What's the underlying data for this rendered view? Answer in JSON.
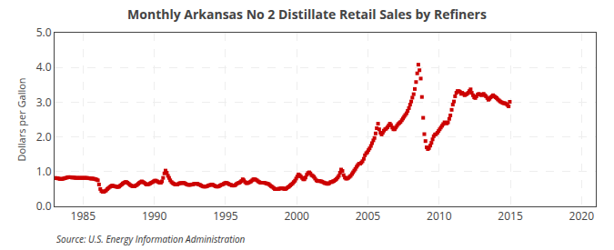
{
  "chart_data": {
    "type": "scatter",
    "title": "Monthly Arkansas No 2 Distillate Retail Sales by Refiners",
    "y_label": "Dollars per Gallon",
    "annotations": [
      "Source: U.S. Energy Information Administration"
    ],
    "color": "#CC0000",
    "marker": "square",
    "grid": true,
    "xlim": [
      1983.0,
      2021.0
    ],
    "ylim": [
      0.0,
      5.0
    ],
    "xticks": [
      1985,
      1990,
      1995,
      2000,
      2005,
      2010,
      2015,
      2020
    ],
    "yticks": [
      {
        "value": 0.0,
        "label": "0.0"
      },
      {
        "value": 1.0,
        "label": "1.0"
      },
      {
        "value": 2.0,
        "label": "2.0"
      },
      {
        "value": 3.0,
        "label": "3.0"
      },
      {
        "value": 4.0,
        "label": "4.0"
      },
      {
        "value": 5.0,
        "label": "5.0"
      }
    ],
    "x": [
      1983.04,
      1983.12,
      1983.21,
      1983.29,
      1983.38,
      1983.46,
      1983.54,
      1983.62,
      1983.71,
      1983.79,
      1983.88,
      1983.96,
      1984.04,
      1984.12,
      1984.21,
      1984.29,
      1984.38,
      1984.46,
      1984.54,
      1984.62,
      1984.71,
      1984.79,
      1984.88,
      1984.96,
      1985.04,
      1985.12,
      1985.21,
      1985.29,
      1985.38,
      1985.46,
      1985.54,
      1985.62,
      1985.71,
      1985.79,
      1985.88,
      1985.96,
      1986.04,
      1986.12,
      1986.21,
      1986.29,
      1986.38,
      1986.46,
      1986.54,
      1986.62,
      1986.71,
      1986.79,
      1986.88,
      1986.96,
      1987.04,
      1987.12,
      1987.21,
      1987.29,
      1987.38,
      1987.46,
      1987.54,
      1987.62,
      1987.71,
      1987.79,
      1987.88,
      1987.96,
      1988.04,
      1988.12,
      1988.21,
      1988.29,
      1988.38,
      1988.46,
      1988.54,
      1988.62,
      1988.71,
      1988.79,
      1988.88,
      1988.96,
      1989.04,
      1989.12,
      1989.21,
      1989.29,
      1989.38,
      1989.46,
      1989.54,
      1989.62,
      1989.71,
      1989.79,
      1989.88,
      1989.96,
      1990.04,
      1990.12,
      1990.21,
      1990.29,
      1990.38,
      1990.46,
      1990.54,
      1990.62,
      1990.71,
      1990.79,
      1990.88,
      1990.96,
      1991.04,
      1991.12,
      1991.21,
      1991.29,
      1991.38,
      1991.46,
      1991.54,
      1991.62,
      1991.71,
      1991.79,
      1991.88,
      1991.96,
      1992.04,
      1992.12,
      1992.21,
      1992.29,
      1992.38,
      1992.46,
      1992.54,
      1992.62,
      1992.71,
      1992.79,
      1992.88,
      1992.96,
      1993.04,
      1993.12,
      1993.21,
      1993.29,
      1993.38,
      1993.46,
      1993.54,
      1993.62,
      1993.71,
      1993.79,
      1993.88,
      1993.96,
      1994.04,
      1994.12,
      1994.21,
      1994.29,
      1994.38,
      1994.46,
      1994.54,
      1994.62,
      1994.71,
      1994.79,
      1994.88,
      1994.96,
      1995.04,
      1995.12,
      1995.21,
      1995.29,
      1995.38,
      1995.46,
      1995.54,
      1995.62,
      1995.71,
      1995.79,
      1995.88,
      1995.96,
      1996.04,
      1996.12,
      1996.21,
      1996.29,
      1996.38,
      1996.46,
      1996.54,
      1996.62,
      1996.71,
      1996.79,
      1996.88,
      1996.96,
      1997.04,
      1997.12,
      1997.21,
      1997.29,
      1997.38,
      1997.46,
      1997.54,
      1997.62,
      1997.71,
      1997.79,
      1997.88,
      1997.96,
      1998.04,
      1998.12,
      1998.21,
      1998.29,
      1998.38,
      1998.46,
      1998.54,
      1998.62,
      1998.71,
      1998.79,
      1998.88,
      1998.96,
      1999.04,
      1999.12,
      1999.21,
      1999.29,
      1999.38,
      1999.46,
      1999.54,
      1999.62,
      1999.71,
      1999.79,
      1999.88,
      1999.96,
      2000.04,
      2000.12,
      2000.21,
      2000.29,
      2000.38,
      2000.46,
      2000.54,
      2000.62,
      2000.71,
      2000.79,
      2000.88,
      2000.96,
      2001.04,
      2001.12,
      2001.21,
      2001.29,
      2001.38,
      2001.46,
      2001.54,
      2001.62,
      2001.71,
      2001.79,
      2001.88,
      2001.96,
      2002.04,
      2002.12,
      2002.21,
      2002.29,
      2002.38,
      2002.46,
      2002.54,
      2002.62,
      2002.71,
      2002.79,
      2002.88,
      2002.96,
      2003.04,
      2003.12,
      2003.21,
      2003.29,
      2003.38,
      2003.46,
      2003.54,
      2003.62,
      2003.71,
      2003.79,
      2003.88,
      2003.96,
      2004.04,
      2004.12,
      2004.21,
      2004.29,
      2004.38,
      2004.46,
      2004.54,
      2004.62,
      2004.71,
      2004.79,
      2004.88,
      2004.96,
      2005.04,
      2005.12,
      2005.21,
      2005.29,
      2005.38,
      2005.46,
      2005.54,
      2005.62,
      2005.71,
      2005.79,
      2005.88,
      2005.96,
      2006.04,
      2006.12,
      2006.21,
      2006.29,
      2006.38,
      2006.46,
      2006.54,
      2006.62,
      2006.71,
      2006.79,
      2006.88,
      2006.96,
      2007.04,
      2007.12,
      2007.21,
      2007.29,
      2007.38,
      2007.46,
      2007.54,
      2007.62,
      2007.71,
      2007.79,
      2007.88,
      2007.96,
      2008.04,
      2008.12,
      2008.21,
      2008.29,
      2008.38,
      2008.46,
      2008.54,
      2008.62,
      2008.71,
      2008.79,
      2008.88,
      2008.96,
      2009.04,
      2009.12,
      2009.21,
      2009.29,
      2009.38,
      2009.46,
      2009.54,
      2009.62,
      2009.71,
      2009.79,
      2009.88,
      2009.96,
      2010.04,
      2010.12,
      2010.21,
      2010.29,
      2010.38,
      2010.46,
      2010.54,
      2010.62,
      2010.71,
      2010.79,
      2010.88,
      2010.96,
      2011.04,
      2011.12,
      2011.21,
      2011.29,
      2011.38,
      2011.46,
      2011.54,
      2011.62,
      2011.71,
      2011.79,
      2011.88,
      2011.96,
      2012.04,
      2012.12,
      2012.21,
      2012.29,
      2012.38,
      2012.46,
      2012.54,
      2012.62,
      2012.71,
      2012.79,
      2012.88,
      2012.96,
      2013.04,
      2013.12,
      2013.21,
      2013.29,
      2013.38,
      2013.46,
      2013.54,
      2013.62,
      2013.71,
      2013.79,
      2013.88,
      2013.96,
      2014.04,
      2014.12,
      2014.21,
      2014.29,
      2014.38,
      2014.46,
      2014.54,
      2014.62,
      2014.71,
      2014.79,
      2014.88,
      2014.96
    ],
    "values": [
      0.82,
      0.81,
      0.81,
      0.8,
      0.79,
      0.79,
      0.79,
      0.8,
      0.81,
      0.82,
      0.83,
      0.84,
      0.84,
      0.84,
      0.83,
      0.83,
      0.83,
      0.82,
      0.82,
      0.82,
      0.82,
      0.82,
      0.82,
      0.82,
      0.82,
      0.82,
      0.82,
      0.82,
      0.81,
      0.81,
      0.8,
      0.8,
      0.8,
      0.79,
      0.78,
      0.77,
      0.75,
      0.63,
      0.5,
      0.44,
      0.42,
      0.42,
      0.44,
      0.46,
      0.5,
      0.53,
      0.56,
      0.58,
      0.6,
      0.59,
      0.58,
      0.57,
      0.56,
      0.56,
      0.57,
      0.6,
      0.63,
      0.66,
      0.68,
      0.7,
      0.7,
      0.68,
      0.65,
      0.62,
      0.6,
      0.58,
      0.58,
      0.58,
      0.6,
      0.62,
      0.65,
      0.68,
      0.7,
      0.72,
      0.7,
      0.68,
      0.65,
      0.63,
      0.63,
      0.64,
      0.66,
      0.68,
      0.7,
      0.72,
      0.74,
      0.74,
      0.72,
      0.7,
      0.68,
      0.68,
      0.72,
      0.82,
      0.95,
      1.03,
      0.97,
      0.88,
      0.82,
      0.75,
      0.7,
      0.67,
      0.65,
      0.63,
      0.63,
      0.63,
      0.65,
      0.67,
      0.67,
      0.67,
      0.68,
      0.67,
      0.65,
      0.63,
      0.62,
      0.62,
      0.62,
      0.63,
      0.63,
      0.65,
      0.65,
      0.65,
      0.65,
      0.63,
      0.62,
      0.6,
      0.58,
      0.57,
      0.57,
      0.57,
      0.58,
      0.6,
      0.61,
      0.62,
      0.63,
      0.62,
      0.6,
      0.58,
      0.57,
      0.57,
      0.58,
      0.6,
      0.62,
      0.63,
      0.65,
      0.67,
      0.68,
      0.67,
      0.65,
      0.63,
      0.62,
      0.6,
      0.6,
      0.6,
      0.62,
      0.65,
      0.67,
      0.68,
      0.7,
      0.73,
      0.78,
      0.75,
      0.7,
      0.67,
      0.67,
      0.68,
      0.7,
      0.72,
      0.75,
      0.78,
      0.78,
      0.77,
      0.75,
      0.72,
      0.7,
      0.68,
      0.68,
      0.68,
      0.68,
      0.67,
      0.66,
      0.65,
      0.64,
      0.61,
      0.58,
      0.56,
      0.53,
      0.5,
      0.5,
      0.5,
      0.5,
      0.51,
      0.52,
      0.52,
      0.52,
      0.5,
      0.5,
      0.52,
      0.55,
      0.57,
      0.6,
      0.63,
      0.66,
      0.7,
      0.74,
      0.8,
      0.86,
      0.92,
      0.9,
      0.86,
      0.82,
      0.78,
      0.78,
      0.83,
      0.91,
      0.96,
      0.98,
      0.95,
      0.9,
      0.88,
      0.85,
      0.8,
      0.75,
      0.73,
      0.73,
      0.73,
      0.72,
      0.71,
      0.69,
      0.67,
      0.67,
      0.65,
      0.65,
      0.67,
      0.7,
      0.7,
      0.72,
      0.73,
      0.76,
      0.79,
      0.83,
      0.88,
      0.97,
      1.06,
      1.02,
      0.9,
      0.83,
      0.8,
      0.8,
      0.82,
      0.85,
      0.88,
      0.93,
      0.98,
      1.03,
      1.08,
      1.14,
      1.19,
      1.23,
      1.23,
      1.26,
      1.3,
      1.37,
      1.47,
      1.53,
      1.56,
      1.62,
      1.67,
      1.74,
      1.82,
      1.9,
      1.97,
      2.1,
      2.25,
      2.38,
      2.22,
      2.12,
      2.07,
      2.12,
      2.18,
      2.22,
      2.24,
      2.28,
      2.33,
      2.38,
      2.34,
      2.27,
      2.22,
      2.22,
      2.27,
      2.32,
      2.37,
      2.4,
      2.43,
      2.48,
      2.53,
      2.58,
      2.63,
      2.68,
      2.75,
      2.83,
      2.93,
      3.02,
      3.13,
      3.23,
      3.38,
      3.58,
      3.83,
      4.08,
      3.92,
      3.68,
      3.15,
      2.55,
      2.08,
      1.88,
      1.7,
      1.65,
      1.68,
      1.75,
      1.83,
      1.93,
      2.02,
      2.07,
      2.08,
      2.12,
      2.17,
      2.22,
      2.27,
      2.32,
      2.37,
      2.42,
      2.4,
      2.39,
      2.42,
      2.52,
      2.62,
      2.78,
      2.93,
      3.02,
      3.17,
      3.27,
      3.32,
      3.32,
      3.3,
      3.24,
      3.27,
      3.24,
      3.2,
      3.22,
      3.24,
      3.27,
      3.32,
      3.37,
      3.27,
      3.2,
      3.14,
      3.12,
      3.17,
      3.22,
      3.24,
      3.22,
      3.2,
      3.22,
      3.24,
      3.2,
      3.17,
      3.12,
      3.07,
      3.1,
      3.14,
      3.17,
      3.2,
      3.17,
      3.14,
      3.12,
      3.08,
      3.05,
      3.02,
      3.0,
      2.98,
      2.97,
      2.97,
      2.95,
      2.92,
      2.88,
      3.01
    ]
  }
}
